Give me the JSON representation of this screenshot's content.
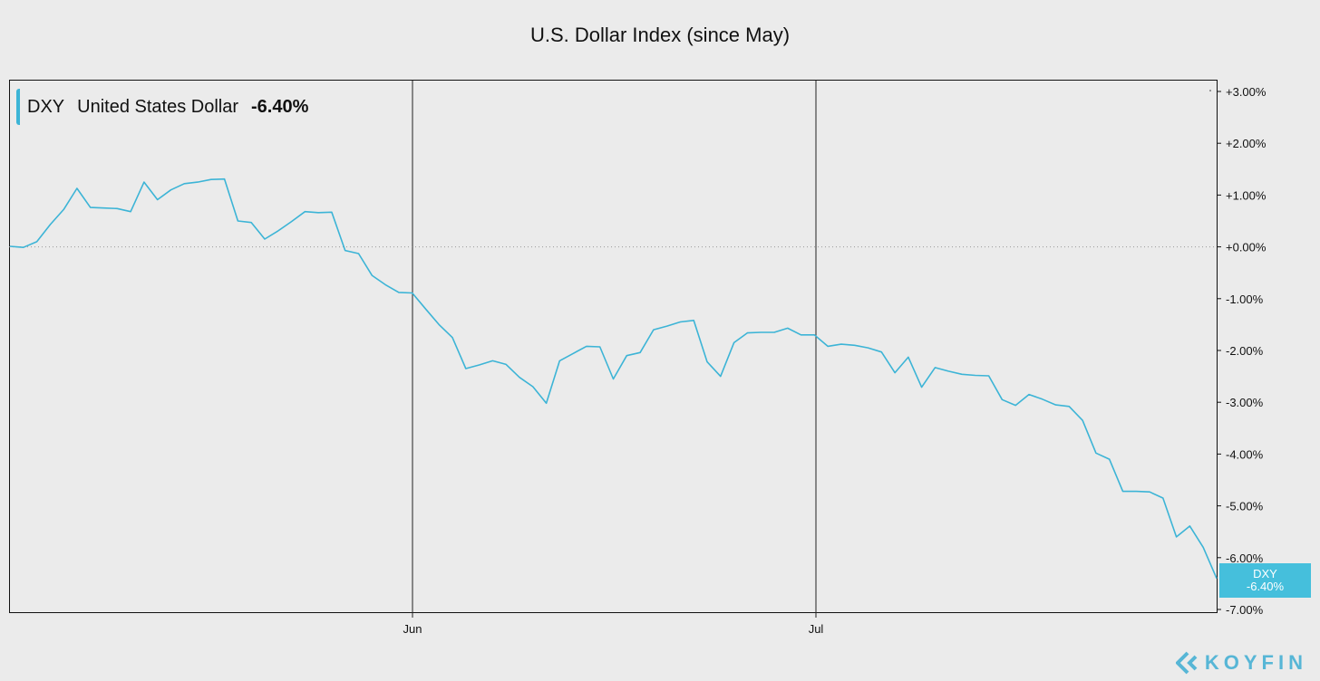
{
  "chart_data": {
    "type": "line",
    "title": "U.S. Dollar Index (since May)",
    "x_tick_labels": [
      "Jun",
      "Jul"
    ],
    "ylim": [
      -7,
      3
    ],
    "y_tick_labels": [
      "+3.00%",
      "+2.00%",
      "+1.00%",
      "+0.00%",
      "-1.00%",
      "-2.00%",
      "-3.00%",
      "-4.00%",
      "-5.00%",
      "-6.00%",
      "-7.00%"
    ],
    "y_ticks": [
      3,
      2,
      1,
      0,
      -1,
      -2,
      -3,
      -4,
      -5,
      -6,
      -7
    ],
    "series": [
      {
        "name": "DXY",
        "legend_label": "United States Dollar",
        "last_value_label": "-6.40%",
        "color": "#3cb4d6",
        "values": [
          0.01,
          -0.01,
          0.1,
          0.43,
          0.72,
          1.13,
          0.76,
          0.75,
          0.74,
          0.68,
          1.25,
          0.91,
          1.1,
          1.22,
          1.25,
          1.3,
          1.31,
          0.5,
          0.47,
          0.15,
          0.31,
          0.49,
          0.68,
          0.66,
          0.67,
          -0.07,
          -0.13,
          -0.55,
          -0.73,
          -0.88,
          -0.89,
          -1.2,
          -1.5,
          -1.75,
          -2.35,
          -2.28,
          -2.2,
          -2.27,
          -2.52,
          -2.7,
          -3.02,
          -2.2,
          -2.06,
          -1.92,
          -1.93,
          -2.55,
          -2.1,
          -2.04,
          -1.6,
          -1.53,
          -1.45,
          -1.42,
          -2.22,
          -2.5,
          -1.85,
          -1.66,
          -1.65,
          -1.65,
          -1.57,
          -1.7,
          -1.7,
          -1.92,
          -1.88,
          -1.9,
          -1.95,
          -2.03,
          -2.43,
          -2.13,
          -2.71,
          -2.33,
          -2.4,
          -2.46,
          -2.48,
          -2.49,
          -2.95,
          -3.06,
          -2.85,
          -2.94,
          -3.05,
          -3.08,
          -3.35,
          -3.98,
          -4.1,
          -4.72,
          -4.72,
          -4.73,
          -4.85,
          -5.6,
          -5.39,
          -5.8,
          -6.4
        ]
      }
    ],
    "grid": false,
    "zero_line": "dotted",
    "legend_position": "top-left",
    "brand": "KOYFIN"
  }
}
